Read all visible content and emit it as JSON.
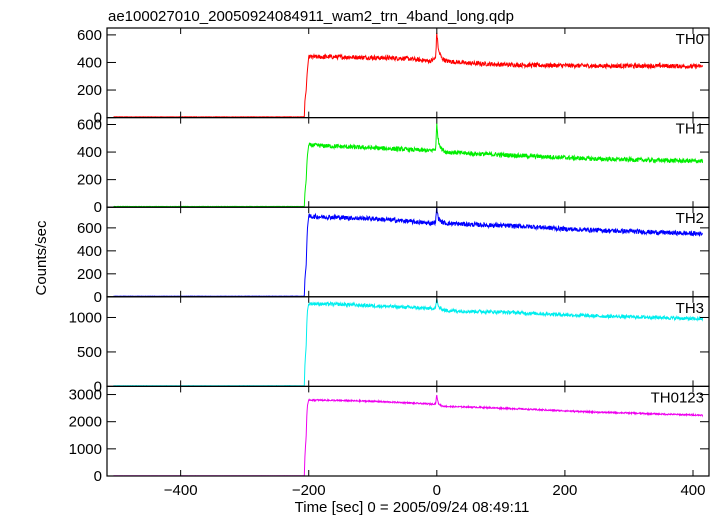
{
  "title": "ae100027010_20050924084911_wam2_trn_4band_long.qdp",
  "ylabel": "Counts/sec",
  "xlabel": "Time [sec] 0 = 2005/09/24 08:49:11",
  "chart_data": {
    "type": "line",
    "x_range": [
      -515,
      425
    ],
    "x_ticks": [
      -400,
      -200,
      0,
      200,
      400
    ],
    "x_tick_labels": [
      "−400",
      "−200",
      "0",
      "200",
      "400"
    ],
    "grid": false,
    "legend": "none",
    "panels": [
      {
        "label": "TH0",
        "color": "#ff0000",
        "ylim": [
          0,
          650
        ],
        "yticks": [
          0,
          200,
          400,
          600
        ],
        "ytick_labels": [
          "0",
          "200",
          "400",
          "600"
        ],
        "series_x": [
          -505,
          -207,
          -206,
          -204,
          -203,
          -202,
          -200,
          -150,
          -100,
          -50,
          -10,
          -2,
          0,
          1,
          3,
          8,
          15,
          50,
          100,
          150,
          200,
          250,
          300,
          350,
          400,
          415
        ],
        "series_y": [
          5,
          5,
          120,
          200,
          280,
          350,
          440,
          440,
          435,
          430,
          410,
          430,
          620,
          560,
          480,
          430,
          410,
          395,
          385,
          380,
          378,
          375,
          375,
          375,
          372,
          372
        ],
        "noise": 16
      },
      {
        "label": "TH1",
        "color": "#00ee00",
        "ylim": [
          0,
          650
        ],
        "yticks": [
          0,
          200,
          400,
          600
        ],
        "ytick_labels": [
          "0",
          "200",
          "400",
          "600"
        ],
        "series_x": [
          -505,
          -207,
          -206,
          -204,
          -203,
          -202,
          -200,
          -150,
          -100,
          -50,
          -10,
          -2,
          0,
          1,
          3,
          8,
          15,
          50,
          100,
          150,
          200,
          250,
          300,
          350,
          400,
          415
        ],
        "series_y": [
          5,
          5,
          100,
          200,
          300,
          380,
          450,
          440,
          430,
          420,
          410,
          420,
          600,
          540,
          470,
          420,
          400,
          390,
          380,
          370,
          360,
          350,
          345,
          340,
          335,
          335
        ],
        "noise": 16
      },
      {
        "label": "TH2",
        "color": "#0000ff",
        "ylim": [
          0,
          780
        ],
        "yticks": [
          0,
          200,
          400,
          600
        ],
        "ytick_labels": [
          "0",
          "200",
          "400",
          "600"
        ],
        "series_x": [
          -505,
          -207,
          -206,
          -204,
          -203,
          -202,
          -200,
          -150,
          -100,
          -50,
          -10,
          -2,
          0,
          1,
          3,
          8,
          15,
          50,
          100,
          150,
          200,
          250,
          300,
          350,
          400,
          415
        ],
        "series_y": [
          5,
          5,
          150,
          280,
          450,
          600,
          700,
          690,
          680,
          660,
          640,
          650,
          780,
          720,
          680,
          650,
          640,
          630,
          620,
          610,
          590,
          580,
          570,
          560,
          550,
          550
        ],
        "noise": 20
      },
      {
        "label": "TH3",
        "color": "#00eeee",
        "ylim": [
          0,
          1300
        ],
        "yticks": [
          0,
          500,
          1000
        ],
        "ytick_labels": [
          "0",
          "500",
          "1000"
        ],
        "series_x": [
          -505,
          -207,
          -206,
          -204,
          -203,
          -202,
          -200,
          -150,
          -100,
          -50,
          -10,
          -2,
          0,
          1,
          3,
          8,
          15,
          50,
          100,
          150,
          200,
          250,
          300,
          350,
          400,
          415
        ],
        "series_y": [
          10,
          10,
          300,
          600,
          900,
          1100,
          1200,
          1190,
          1170,
          1150,
          1130,
          1140,
          1280,
          1200,
          1150,
          1120,
          1100,
          1090,
          1080,
          1060,
          1040,
          1020,
          1010,
          1000,
          980,
          980
        ],
        "noise": 25
      },
      {
        "label": "TH0123",
        "color": "#ee00ee",
        "ylim": [
          0,
          3300
        ],
        "yticks": [
          0,
          1000,
          2000,
          3000
        ],
        "ytick_labels": [
          "0",
          "1000",
          "2000",
          "3000"
        ],
        "series_x": [
          -505,
          -207,
          -206,
          -204,
          -203,
          -202,
          -200,
          -150,
          -100,
          -50,
          -10,
          -2,
          0,
          1,
          3,
          8,
          15,
          50,
          100,
          150,
          200,
          250,
          300,
          350,
          400,
          415
        ],
        "series_y": [
          10,
          10,
          700,
          1500,
          2200,
          2600,
          2800,
          2780,
          2750,
          2700,
          2650,
          2660,
          3000,
          2800,
          2650,
          2580,
          2560,
          2540,
          2500,
          2450,
          2400,
          2350,
          2320,
          2280,
          2250,
          2240
        ],
        "noise": 25
      }
    ]
  }
}
